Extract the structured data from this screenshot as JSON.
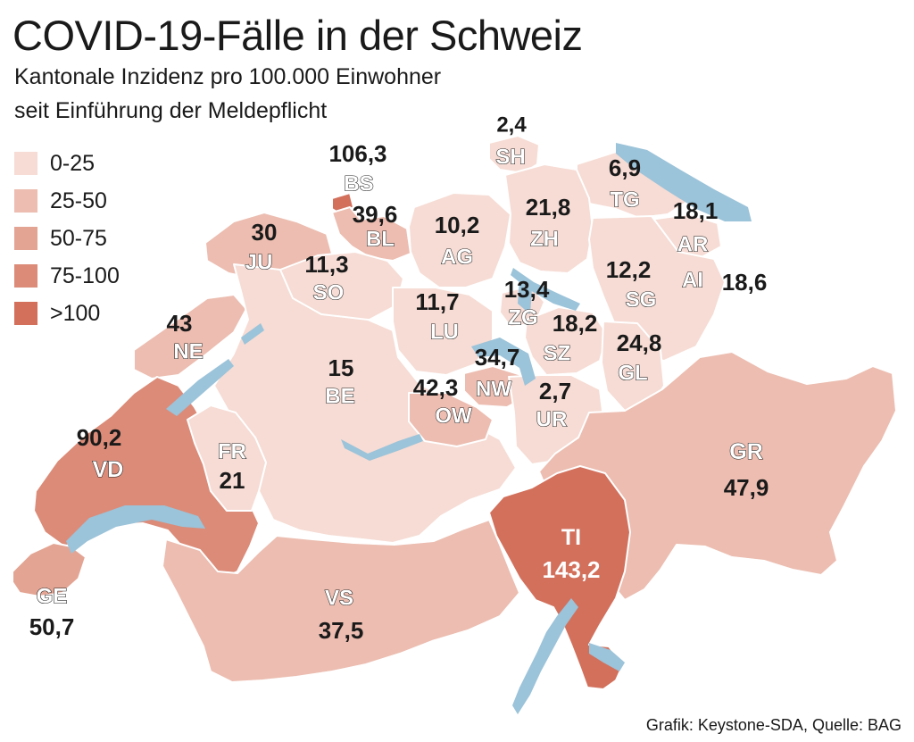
{
  "title": "COVID-19-Fälle in der Schweiz",
  "subtitle_line1": "Kantonale Inzidenz pro 100.000 Einwohner",
  "subtitle_line2": "seit Einführung der Meldepflicht",
  "source": "Grafik: Keystone-SDA, Quelle: BAG",
  "legend": [
    {
      "label": "0-25",
      "color": "#f6dcd4"
    },
    {
      "label": "25-50",
      "color": "#ecbdb0"
    },
    {
      "label": "50-75",
      "color": "#e3a493"
    },
    {
      "label": "75-100",
      "color": "#db8b78"
    },
    {
      "label": ">100",
      "color": "#d2705c"
    }
  ],
  "colors": {
    "water": "#9bc3d9",
    "border": "#ffffff"
  },
  "cantons": [
    {
      "code": "SH",
      "value": "2,4",
      "color": "#f6dcd4"
    },
    {
      "code": "BS",
      "value": "106,3",
      "color": "#d2705c"
    },
    {
      "code": "TG",
      "value": "6,9",
      "color": "#f6dcd4"
    },
    {
      "code": "BL",
      "value": "39,6",
      "color": "#ecbdb0"
    },
    {
      "code": "JU",
      "value": "30",
      "color": "#ecbdb0"
    },
    {
      "code": "AG",
      "value": "10,2",
      "color": "#f6dcd4"
    },
    {
      "code": "ZH",
      "value": "21,8",
      "color": "#f6dcd4"
    },
    {
      "code": "AR",
      "value": "18,1",
      "color": "#f6dcd4"
    },
    {
      "code": "SO",
      "value": "11,3",
      "color": "#f6dcd4"
    },
    {
      "code": "AI",
      "value": "18,6",
      "color": "#f6dcd4"
    },
    {
      "code": "SG",
      "value": "12,2",
      "color": "#f6dcd4"
    },
    {
      "code": "ZG",
      "value": "13,4",
      "color": "#f6dcd4"
    },
    {
      "code": "LU",
      "value": "11,7",
      "color": "#f6dcd4"
    },
    {
      "code": "SZ",
      "value": "18,2",
      "color": "#f6dcd4"
    },
    {
      "code": "NE",
      "value": "43",
      "color": "#ecbdb0"
    },
    {
      "code": "GL",
      "value": "24,8",
      "color": "#f6dcd4"
    },
    {
      "code": "BE",
      "value": "15",
      "color": "#f6dcd4"
    },
    {
      "code": "NW",
      "value": "34,7",
      "color": "#ecbdb0"
    },
    {
      "code": "OW",
      "value": "42,3",
      "color": "#ecbdb0"
    },
    {
      "code": "UR",
      "value": "2,7",
      "color": "#f6dcd4"
    },
    {
      "code": "VD",
      "value": "90,2",
      "color": "#db8b78"
    },
    {
      "code": "FR",
      "value": "21",
      "color": "#f6dcd4"
    },
    {
      "code": "GR",
      "value": "47,9",
      "color": "#ecbdb0"
    },
    {
      "code": "TI",
      "value": "143,2",
      "color": "#d2705c"
    },
    {
      "code": "VS",
      "value": "37,5",
      "color": "#ecbdb0"
    },
    {
      "code": "GE",
      "value": "50,7",
      "color": "#e3a493"
    }
  ]
}
